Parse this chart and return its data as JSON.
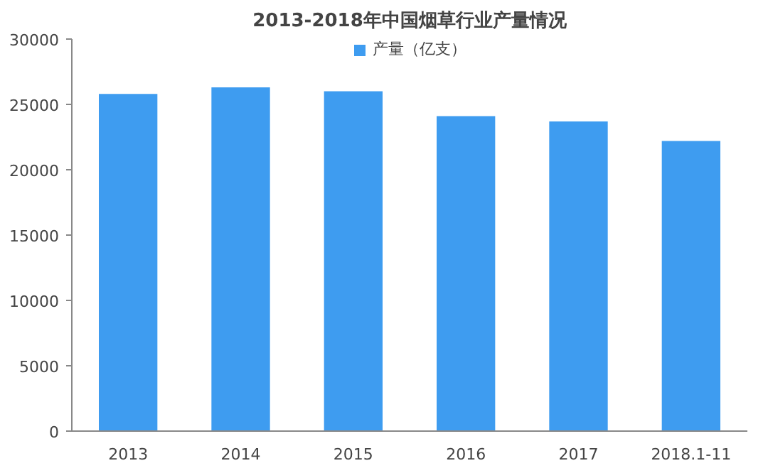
{
  "chart_data": {
    "type": "bar",
    "title": "2013-2018年中国烟草行业产量情况",
    "categories": [
      "2013",
      "2014",
      "2015",
      "2016",
      "2017",
      "2018.1-11"
    ],
    "series": [
      {
        "name": "产量（亿支）",
        "color": "#3e9cf0",
        "values": [
          25800,
          26300,
          26000,
          24100,
          23700,
          22200
        ]
      }
    ],
    "ylim": [
      0,
      30000
    ],
    "yticks": [
      0,
      5000,
      10000,
      15000,
      20000,
      25000,
      30000
    ],
    "grid": false,
    "legend": "top"
  }
}
